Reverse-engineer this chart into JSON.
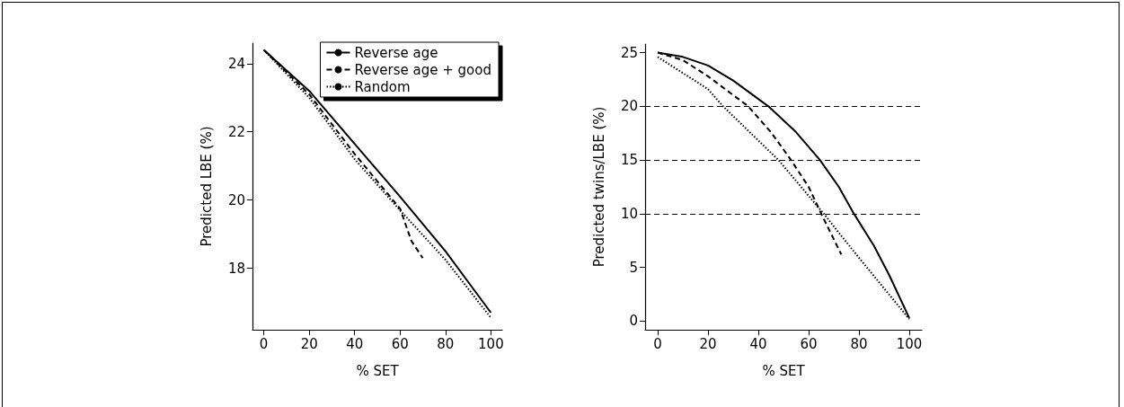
{
  "chart_data": [
    {
      "type": "line",
      "xlabel": "% SET",
      "ylabel": "Predicted LBE (%)",
      "xlim": [
        -5,
        105
      ],
      "ylim": [
        16.2,
        24.6
      ],
      "xticks": [
        0,
        20,
        40,
        60,
        80,
        100
      ],
      "yticks": [
        18,
        20,
        22,
        24
      ],
      "grid": false,
      "legend": "top right",
      "marker": "none",
      "series": [
        {
          "name": "Reverse age",
          "color": "#000000",
          "line_style": "solid",
          "x": [
            0,
            20,
            40,
            60,
            80,
            100
          ],
          "values": [
            24.4,
            23.2,
            21.65,
            20.1,
            18.5,
            16.7
          ]
        },
        {
          "name": "Reverse age + good",
          "color": "#000000",
          "line_style": "dashed",
          "x": [
            0,
            20,
            40,
            60,
            65,
            70
          ],
          "values": [
            24.4,
            23.1,
            21.35,
            19.75,
            18.8,
            18.3
          ]
        },
        {
          "name": "Random",
          "color": "#000000",
          "line_style": "dotted",
          "x": [
            0,
            20,
            40,
            60,
            80,
            100
          ],
          "values": [
            24.4,
            23.0,
            21.2,
            19.7,
            18.25,
            16.55
          ]
        }
      ]
    },
    {
      "type": "line",
      "xlabel": "% SET",
      "ylabel": "Predicted twins/LBE (%)",
      "xlim": [
        -5,
        105
      ],
      "ylim": [
        -0.8,
        25.8
      ],
      "xticks": [
        0,
        20,
        40,
        60,
        80,
        100
      ],
      "yticks": [
        0,
        5,
        10,
        15,
        20,
        25
      ],
      "grid": false,
      "legend": false,
      "marker": "none",
      "ref_lines": [
        {
          "axis": "y",
          "value": 20,
          "line_style": "dashed",
          "color": "#000000"
        },
        {
          "axis": "y",
          "value": 15,
          "line_style": "dashed",
          "color": "#000000"
        },
        {
          "axis": "y",
          "value": 10,
          "line_style": "dashed",
          "color": "#000000"
        }
      ],
      "series": [
        {
          "color": "#000000",
          "line_style": "solid",
          "x": [
            0,
            10,
            20,
            30,
            44,
            55,
            64.5,
            72,
            78,
            86,
            92,
            100
          ],
          "values": [
            25,
            24.6,
            23.8,
            22.4,
            20,
            17.6,
            15,
            12.5,
            10,
            7,
            4.3,
            0.3
          ]
        },
        {
          "color": "#000000",
          "line_style": "dashed",
          "x": [
            0,
            10,
            20,
            36,
            45,
            53,
            60,
            65,
            73
          ],
          "values": [
            25,
            24.3,
            22.8,
            20,
            17.6,
            15,
            12.5,
            10,
            6.2
          ]
        },
        {
          "color": "#000000",
          "line_style": "dotted",
          "x": [
            0,
            20,
            26,
            48,
            66,
            80,
            100
          ],
          "values": [
            24.6,
            21.6,
            20,
            15,
            10,
            5.9,
            0.2
          ]
        }
      ]
    }
  ]
}
